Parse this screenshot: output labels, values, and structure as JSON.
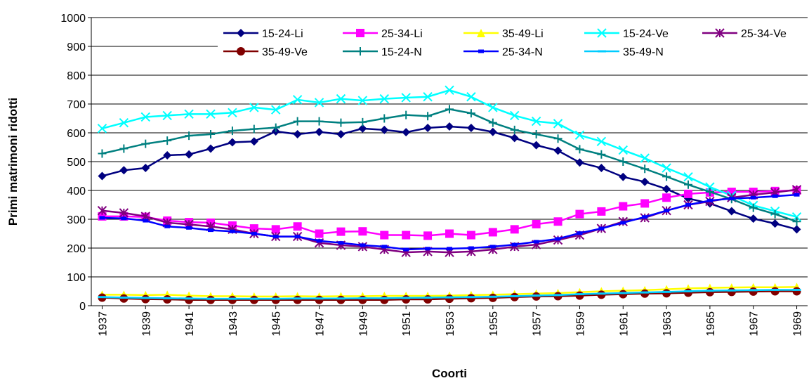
{
  "chart_data": {
    "type": "line",
    "x_label": "Coorti",
    "y_label": "Primi matrimoni ridotti",
    "x": [
      1937,
      1938,
      1939,
      1940,
      1941,
      1942,
      1943,
      1944,
      1945,
      1946,
      1947,
      1948,
      1949,
      1950,
      1951,
      1952,
      1953,
      1954,
      1955,
      1956,
      1957,
      1958,
      1959,
      1960,
      1961,
      1962,
      1963,
      1964,
      1965,
      1966,
      1967,
      1968,
      1969
    ],
    "xlim": [
      1936.5,
      1969.5
    ],
    "xticks": [
      1937,
      1939,
      1941,
      1943,
      1945,
      1947,
      1949,
      1951,
      1953,
      1955,
      1957,
      1959,
      1961,
      1963,
      1965,
      1967,
      1969
    ],
    "ylim": [
      0,
      1000
    ],
    "yticks": [
      0,
      100,
      200,
      300,
      400,
      500,
      600,
      700,
      800,
      900,
      1000
    ],
    "grid": true,
    "legend": "top",
    "series": [
      {
        "name": "15-24-Li",
        "color": "#000080",
        "marker": "diamond",
        "values": [
          450,
          470,
          478,
          522,
          525,
          545,
          567,
          570,
          605,
          595,
          603,
          595,
          615,
          610,
          602,
          617,
          622,
          617,
          603,
          582,
          557,
          538,
          497,
          478,
          447,
          430,
          405,
          372,
          355,
          328,
          302,
          285,
          265
        ]
      },
      {
        "name": "25-34-Li",
        "color": "#ff00ff",
        "marker": "square",
        "values": [
          310,
          310,
          308,
          295,
          290,
          288,
          278,
          268,
          265,
          275,
          250,
          257,
          258,
          245,
          245,
          243,
          250,
          245,
          255,
          265,
          283,
          292,
          318,
          327,
          345,
          355,
          375,
          388,
          393,
          395,
          395,
          398,
          400
        ]
      },
      {
        "name": "35-49-Li",
        "color": "#ffff00",
        "marker": "triangle",
        "values": [
          38,
          38,
          37,
          38,
          35,
          33,
          33,
          32,
          32,
          33,
          32,
          33,
          33,
          34,
          34,
          34,
          35,
          37,
          38,
          40,
          42,
          44,
          47,
          50,
          52,
          54,
          57,
          60,
          62,
          63,
          64,
          64,
          65
        ]
      },
      {
        "name": "15-24-Ve",
        "color": "#00ffff",
        "marker": "x",
        "values": [
          615,
          635,
          655,
          660,
          665,
          665,
          670,
          688,
          680,
          715,
          705,
          718,
          712,
          718,
          722,
          725,
          748,
          725,
          688,
          660,
          640,
          632,
          592,
          570,
          540,
          512,
          478,
          447,
          412,
          382,
          348,
          328,
          308
        ]
      },
      {
        "name": "25-34-Ve",
        "color": "#800080",
        "marker": "star",
        "values": [
          330,
          322,
          310,
          288,
          282,
          275,
          265,
          250,
          240,
          240,
          218,
          210,
          205,
          195,
          185,
          188,
          185,
          188,
          195,
          205,
          212,
          228,
          245,
          268,
          292,
          305,
          330,
          350,
          362,
          375,
          385,
          393,
          403
        ]
      },
      {
        "name": "35-49-Ve",
        "color": "#800000",
        "marker": "circle",
        "values": [
          28,
          25,
          23,
          22,
          20,
          20,
          20,
          20,
          20,
          20,
          20,
          20,
          20,
          20,
          22,
          22,
          24,
          26,
          27,
          30,
          32,
          33,
          35,
          38,
          40,
          42,
          43,
          45,
          47,
          48,
          49,
          50,
          50
        ]
      },
      {
        "name": "15-24-N",
        "color": "#008080",
        "marker": "plus",
        "values": [
          528,
          545,
          562,
          573,
          590,
          595,
          607,
          613,
          618,
          640,
          640,
          635,
          637,
          650,
          662,
          658,
          682,
          668,
          635,
          610,
          595,
          580,
          543,
          525,
          500,
          475,
          448,
          420,
          395,
          370,
          340,
          318,
          292
        ]
      },
      {
        "name": "25-34-N",
        "color": "#0000ff",
        "marker": "rect",
        "values": [
          305,
          303,
          295,
          275,
          270,
          262,
          258,
          250,
          240,
          240,
          225,
          218,
          210,
          205,
          195,
          198,
          198,
          200,
          205,
          212,
          222,
          232,
          252,
          268,
          288,
          308,
          330,
          350,
          365,
          372,
          375,
          380,
          385
        ]
      },
      {
        "name": "35-49-N",
        "color": "#00ccff",
        "marker": "dash",
        "values": [
          30,
          28,
          27,
          26,
          25,
          24,
          24,
          24,
          24,
          25,
          25,
          25,
          26,
          26,
          27,
          28,
          29,
          30,
          31,
          33,
          35,
          37,
          40,
          42,
          44,
          46,
          48,
          50,
          52,
          53,
          54,
          55,
          55
        ]
      }
    ]
  }
}
